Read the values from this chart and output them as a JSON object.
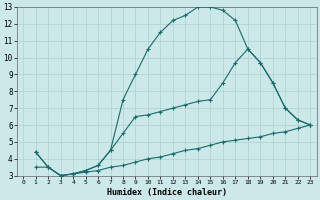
{
  "xlabel": "Humidex (Indice chaleur)",
  "xlim": [
    -0.5,
    23.5
  ],
  "ylim": [
    3,
    13
  ],
  "xticks": [
    0,
    1,
    2,
    3,
    4,
    5,
    6,
    7,
    8,
    9,
    10,
    11,
    12,
    13,
    14,
    15,
    16,
    17,
    18,
    19,
    20,
    21,
    22,
    23
  ],
  "yticks": [
    3,
    4,
    5,
    6,
    7,
    8,
    9,
    10,
    11,
    12,
    13
  ],
  "background_color": "#cce8e8",
  "line_color": "#1a6b6b",
  "grid_color": "#aad0d0",
  "line1_x": [
    1,
    2,
    3,
    4,
    5,
    6,
    7,
    8,
    9,
    10,
    11,
    12,
    13,
    14,
    15,
    16,
    17,
    18,
    19,
    20,
    21,
    22,
    23
  ],
  "line1_y": [
    3.5,
    3.5,
    3.0,
    3.1,
    3.2,
    3.3,
    3.5,
    3.6,
    3.8,
    4.0,
    4.1,
    4.3,
    4.5,
    4.6,
    4.8,
    5.0,
    5.1,
    5.2,
    5.3,
    5.5,
    5.6,
    5.8,
    6.0
  ],
  "line2_x": [
    1,
    2,
    3,
    4,
    5,
    6,
    7,
    8,
    9,
    10,
    11,
    12,
    13,
    14,
    15,
    16,
    17,
    18,
    19,
    20,
    21,
    22,
    23
  ],
  "line2_y": [
    4.4,
    3.5,
    3.0,
    3.1,
    3.3,
    3.6,
    4.5,
    5.5,
    6.5,
    6.6,
    6.8,
    7.0,
    7.2,
    7.4,
    7.5,
    8.5,
    9.7,
    10.5,
    9.7,
    8.5,
    7.0,
    6.3,
    6.0
  ],
  "line3_x": [
    1,
    2,
    3,
    4,
    5,
    6,
    7,
    8,
    9,
    10,
    11,
    12,
    13,
    14,
    15,
    16,
    17,
    18,
    19,
    20,
    21,
    22,
    23
  ],
  "line3_y": [
    4.4,
    3.5,
    3.0,
    3.1,
    3.3,
    3.6,
    4.5,
    7.5,
    9.0,
    10.5,
    11.5,
    12.2,
    12.5,
    13.0,
    13.0,
    12.8,
    12.2,
    10.5,
    9.7,
    8.5,
    7.0,
    6.3,
    6.0
  ]
}
